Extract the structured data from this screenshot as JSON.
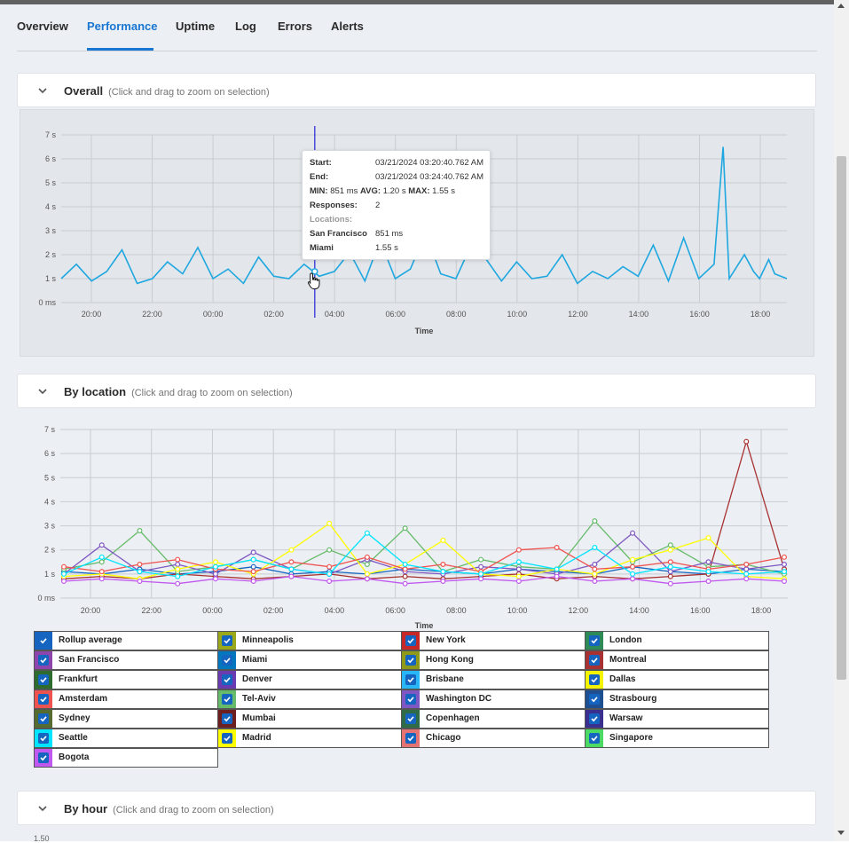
{
  "tabs": [
    "Overview",
    "Performance",
    "Uptime",
    "Log",
    "Errors",
    "Alerts"
  ],
  "active_tab": "Performance",
  "panels": {
    "overall": {
      "title": "Overall",
      "hint": "(Click and drag to zoom on selection)"
    },
    "by_location": {
      "title": "By location",
      "hint": "(Click and drag to zoom on selection)"
    },
    "by_hour": {
      "title": "By hour",
      "hint": "(Click and drag to zoom on selection)",
      "peek": "1.50"
    }
  },
  "tooltip": {
    "start_label": "Start:",
    "start_value": "03/21/2024 03:20:40.762 AM",
    "end_label": "End:",
    "end_value": "03/21/2024 03:24:40.762 AM",
    "min_label": "MIN:",
    "min_value": "851 ms",
    "avg_label": "AVG:",
    "avg_value": "1.20 s",
    "max_label": "MAX:",
    "max_value": "1.55 s",
    "responses_label": "Responses:",
    "responses_value": "2",
    "locations_label": "Locations:",
    "loc1_name": "San Francisco",
    "loc1_value": "851 ms",
    "loc2_name": "Miami",
    "loc2_value": "1.55 s"
  },
  "colors": {
    "accent": "#1976d2",
    "line": "#1ea7e0",
    "cursor_line": "#3f3fd8"
  },
  "legend": [
    {
      "name": "Rollup average",
      "color": "#1565c0"
    },
    {
      "name": "Minneapolis",
      "color": "#9aa81a"
    },
    {
      "name": "New York",
      "color": "#c62828"
    },
    {
      "name": "London",
      "color": "#2e8b57"
    },
    {
      "name": "San Francisco",
      "color": "#8e44ad"
    },
    {
      "name": "Miami",
      "color": "#0277bd"
    },
    {
      "name": "Hong Kong",
      "color": "#8f9a1a"
    },
    {
      "name": "Montreal",
      "color": "#a83232"
    },
    {
      "name": "Frankfurt",
      "color": "#2e6b2e"
    },
    {
      "name": "Denver",
      "color": "#6a3ab0"
    },
    {
      "name": "Brisbane",
      "color": "#29b6f6"
    },
    {
      "name": "Dallas",
      "color": "#f4f400"
    },
    {
      "name": "Amsterdam",
      "color": "#ef5350"
    },
    {
      "name": "Tel-Aviv",
      "color": "#66bb6a"
    },
    {
      "name": "Washington DC",
      "color": "#7e57c2"
    },
    {
      "name": "Strasbourg",
      "color": "#1e4f91"
    },
    {
      "name": "Sydney",
      "color": "#556b2f"
    },
    {
      "name": "Mumbai",
      "color": "#6d1f1f"
    },
    {
      "name": "Copenhagen",
      "color": "#2f6b46"
    },
    {
      "name": "Warsaw",
      "color": "#3a2f8f"
    },
    {
      "name": "Seattle",
      "color": "#00e5ff"
    },
    {
      "name": "Madrid",
      "color": "#ffff00"
    },
    {
      "name": "Chicago",
      "color": "#e57373"
    },
    {
      "name": "Singapore",
      "color": "#4cd964"
    },
    {
      "name": "Bogota",
      "color": "#c158f0"
    }
  ],
  "chart_data": [
    {
      "type": "line",
      "xlabel": "Time",
      "ylabel": "",
      "x_ticks": [
        "20:00",
        "22:00",
        "00:00",
        "02:00",
        "04:00",
        "06:00",
        "08:00",
        "10:00",
        "12:00",
        "14:00",
        "16:00",
        "18:00"
      ],
      "y_ticks": [
        "0 ms",
        "1 s",
        "2 s",
        "3 s",
        "4 s",
        "5 s",
        "6 s",
        "7 s"
      ],
      "ylim": [
        0,
        7
      ],
      "xlim_hours": [
        19,
        42.9
      ],
      "grid": true,
      "series": [
        {
          "x_hours": [
            19.0,
            19.5,
            20.0,
            20.5,
            21.0,
            21.5,
            22.0,
            22.5,
            23.0,
            23.5,
            24.0,
            24.5,
            25.0,
            25.5,
            26.0,
            26.5,
            27.0,
            27.5,
            28.0,
            28.5,
            29.0,
            29.5,
            30.0,
            30.5,
            31.0,
            31.5,
            32.0,
            32.5,
            33.0,
            33.5,
            34.0,
            34.5,
            35.0,
            35.5,
            36.0,
            36.5,
            37.0,
            37.5,
            38.0,
            38.5,
            39.0,
            39.5,
            40.0,
            40.5,
            40.8,
            41.0,
            41.5,
            41.8,
            42.0,
            42.3,
            42.5,
            42.9
          ],
          "values": [
            1.0,
            1.6,
            0.9,
            1.3,
            2.2,
            0.8,
            1.0,
            1.7,
            1.2,
            2.3,
            1.0,
            1.4,
            0.8,
            1.9,
            1.1,
            1.0,
            1.6,
            1.1,
            1.3,
            2.1,
            0.9,
            2.6,
            1.0,
            1.4,
            2.9,
            1.2,
            1.0,
            2.4,
            1.8,
            0.9,
            1.7,
            1.0,
            1.1,
            2.0,
            0.8,
            1.3,
            1.0,
            1.5,
            1.1,
            2.4,
            0.9,
            2.7,
            1.0,
            1.6,
            6.5,
            1.0,
            2.0,
            1.3,
            1.0,
            1.8,
            1.2,
            1.0
          ]
        }
      ]
    },
    {
      "type": "line",
      "xlabel": "Time",
      "ylabel": "",
      "x_ticks": [
        "20:00",
        "22:00",
        "00:00",
        "02:00",
        "04:00",
        "06:00",
        "08:00",
        "10:00",
        "12:00",
        "14:00",
        "16:00",
        "18:00"
      ],
      "y_ticks": [
        "0 ms",
        "1 s",
        "2 s",
        "3 s",
        "4 s",
        "5 s",
        "6 s",
        "7 s"
      ],
      "ylim": [
        0,
        7
      ],
      "grid": true,
      "series": [
        {
          "name": "Rollup average",
          "values": [
            1.1,
            1.0,
            1.2,
            1.0,
            1.1,
            1.3,
            1.0,
            1.1,
            1.0,
            1.2,
            1.1,
            1.0,
            1.2,
            1.1,
            1.0,
            1.3,
            1.1,
            1.0,
            1.2,
            1.1
          ]
        },
        {
          "name": "Montreal",
          "values": [
            0.8,
            0.9,
            0.8,
            1.0,
            0.9,
            0.8,
            0.9,
            1.0,
            0.8,
            0.9,
            0.8,
            0.9,
            1.0,
            0.8,
            0.9,
            0.8,
            0.9,
            1.0,
            6.5,
            1.2
          ]
        },
        {
          "name": "Tel-Aviv",
          "values": [
            1.2,
            1.5,
            2.8,
            1.1,
            1.3,
            1.6,
            1.2,
            2.0,
            1.4,
            2.9,
            1.1,
            1.6,
            1.3,
            1.2,
            3.2,
            1.5,
            2.2,
            1.3,
            1.4,
            1.0
          ]
        },
        {
          "name": "Washington DC",
          "values": [
            1.0,
            2.2,
            1.1,
            1.4,
            1.0,
            1.9,
            1.2,
            1.0,
            1.6,
            1.1,
            1.0,
            1.3,
            1.2,
            1.0,
            1.4,
            2.7,
            1.1,
            1.5,
            1.2,
            1.4
          ]
        },
        {
          "name": "Madrid",
          "values": [
            0.9,
            1.0,
            0.8,
            1.2,
            1.5,
            1.0,
            2.0,
            3.1,
            1.0,
            1.4,
            2.4,
            1.0,
            0.9,
            1.2,
            1.0,
            1.6,
            2.0,
            2.5,
            0.9,
            0.8
          ]
        },
        {
          "name": "Amsterdam",
          "values": [
            1.3,
            1.1,
            1.4,
            1.6,
            1.2,
            1.1,
            1.5,
            1.3,
            1.7,
            1.2,
            1.4,
            1.1,
            2.0,
            2.1,
            1.2,
            1.3,
            1.5,
            1.2,
            1.4,
            1.7
          ]
        },
        {
          "name": "Bogota",
          "values": [
            0.7,
            0.8,
            0.7,
            0.6,
            0.8,
            0.7,
            0.9,
            0.7,
            0.8,
            0.6,
            0.7,
            0.8,
            0.7,
            0.9,
            0.7,
            0.8,
            0.6,
            0.7,
            0.8,
            0.7
          ]
        },
        {
          "name": "Seattle",
          "values": [
            1.0,
            1.7,
            1.1,
            0.9,
            1.3,
            1.6,
            1.2,
            1.0,
            2.7,
            1.4,
            1.1,
            1.0,
            1.5,
            1.2,
            2.1,
            1.0,
            1.3,
            1.1,
            1.0,
            1.1
          ]
        }
      ]
    }
  ]
}
